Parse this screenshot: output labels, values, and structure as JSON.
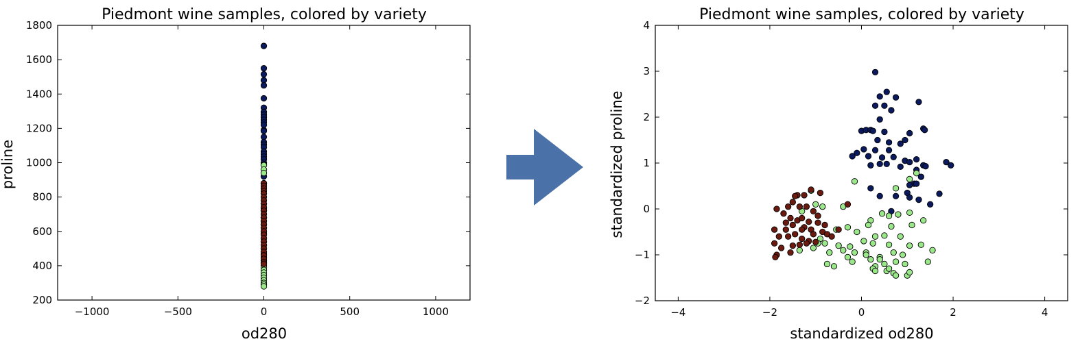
{
  "arrow_color": "#4a72a8",
  "colors": {
    "class_0": "#0a1a5c",
    "class_1": "#9be88a",
    "class_2": "#6b1a10",
    "edge": "#000000"
  },
  "chart_data": [
    {
      "type": "scatter",
      "title": "Piedmont wine samples, colored by variety",
      "xlabel": "od280",
      "ylabel": "proline",
      "xlim": [
        -1200,
        1200
      ],
      "ylim": [
        200,
        1800
      ],
      "xticks": [
        -1000,
        -500,
        0,
        500,
        1000
      ],
      "yticks": [
        200,
        400,
        600,
        800,
        1000,
        1200,
        1400,
        1600,
        1800
      ],
      "xtick_labels": [
        "−1000",
        "−500",
        "0",
        "500",
        "1000"
      ],
      "ytick_labels": [
        "200",
        "400",
        "600",
        "800",
        "1000",
        "1200",
        "1400",
        "1600",
        "1800"
      ],
      "grid": false,
      "series": [
        {
          "class": 0,
          "points": [
            [
              0,
              1680
            ],
            [
              0,
              1550
            ],
            [
              0,
              1515
            ],
            [
              0,
              1480
            ],
            [
              0,
              1450
            ],
            [
              0,
              1375
            ],
            [
              0,
              1320
            ],
            [
              0,
              1295
            ],
            [
              0,
              1280
            ],
            [
              0,
              1265
            ],
            [
              0,
              1250
            ],
            [
              0,
              1235
            ],
            [
              0,
              1220
            ],
            [
              0,
              1190
            ],
            [
              0,
              1185
            ],
            [
              0,
              1150
            ],
            [
              0,
              1120
            ],
            [
              0,
              1105
            ],
            [
              0,
              1090
            ],
            [
              0,
              1065
            ],
            [
              0,
              1050
            ],
            [
              0,
              1035
            ],
            [
              0,
              1020
            ],
            [
              0,
              1000
            ],
            [
              0,
              990
            ],
            [
              0,
              920
            ],
            [
              0,
              880
            ],
            [
              0,
              760
            ],
            [
              0,
              735
            ]
          ]
        },
        {
          "class": 1,
          "points": [
            [
              0,
              985
            ],
            [
              0,
              960
            ],
            [
              0,
              940
            ],
            [
              0,
              720
            ],
            [
              0,
              680
            ],
            [
              0,
              660
            ],
            [
              0,
              640
            ],
            [
              0,
              620
            ],
            [
              0,
              600
            ],
            [
              0,
              585
            ],
            [
              0,
              560
            ],
            [
              0,
              540
            ],
            [
              0,
              520
            ],
            [
              0,
              500
            ],
            [
              0,
              480
            ],
            [
              0,
              465
            ],
            [
              0,
              450
            ],
            [
              0,
              430
            ],
            [
              0,
              415
            ],
            [
              0,
              400
            ],
            [
              0,
              390
            ],
            [
              0,
              375
            ],
            [
              0,
              360
            ],
            [
              0,
              345
            ],
            [
              0,
              330
            ],
            [
              0,
              315
            ],
            [
              0,
              300
            ],
            [
              0,
              290
            ],
            [
              0,
              280
            ]
          ]
        },
        {
          "class": 2,
          "points": [
            [
              0,
              880
            ],
            [
              0,
              865
            ],
            [
              0,
              850
            ],
            [
              0,
              835
            ],
            [
              0,
              820
            ],
            [
              0,
              800
            ],
            [
              0,
              780
            ],
            [
              0,
              760
            ],
            [
              0,
              740
            ],
            [
              0,
              720
            ],
            [
              0,
              700
            ],
            [
              0,
              680
            ],
            [
              0,
              660
            ],
            [
              0,
              640
            ],
            [
              0,
              620
            ],
            [
              0,
              600
            ],
            [
              0,
              580
            ],
            [
              0,
              560
            ],
            [
              0,
              540
            ],
            [
              0,
              520
            ],
            [
              0,
              500
            ],
            [
              0,
              480
            ],
            [
              0,
              460
            ],
            [
              0,
              440
            ],
            [
              0,
              420
            ],
            [
              0,
              410
            ]
          ]
        }
      ]
    },
    {
      "type": "scatter",
      "title": "Piedmont wine samples, colored by variety",
      "xlabel": "standardized od280",
      "ylabel": "standardized proline",
      "xlim": [
        -4.5,
        4.5
      ],
      "ylim": [
        -2,
        4
      ],
      "xticks": [
        -4,
        -2,
        0,
        2,
        4
      ],
      "yticks": [
        -2,
        -1,
        0,
        1,
        2,
        3,
        4
      ],
      "xtick_labels": [
        "−4",
        "−2",
        "0",
        "2",
        "4"
      ],
      "ytick_labels": [
        "−2",
        "−1",
        "0",
        "1",
        "2",
        "3",
        "4"
      ],
      "grid": false,
      "series": [
        {
          "class": 0,
          "points": [
            [
              0.3,
              2.98
            ],
            [
              0.55,
              2.55
            ],
            [
              0.4,
              2.45
            ],
            [
              0.75,
              2.43
            ],
            [
              1.25,
              2.33
            ],
            [
              0.3,
              2.25
            ],
            [
              0.5,
              2.25
            ],
            [
              0.65,
              2.15
            ],
            [
              0.4,
              1.95
            ],
            [
              1.35,
              1.75
            ],
            [
              1.38,
              1.72
            ],
            [
              0.0,
              1.7
            ],
            [
              0.1,
              1.72
            ],
            [
              0.2,
              1.72
            ],
            [
              0.25,
              1.7
            ],
            [
              0.5,
              1.68
            ],
            [
              1.05,
              1.65
            ],
            [
              0.35,
              1.5
            ],
            [
              0.6,
              1.45
            ],
            [
              0.85,
              1.42
            ],
            [
              0.95,
              1.5
            ],
            [
              0.05,
              1.3
            ],
            [
              0.3,
              1.28
            ],
            [
              0.6,
              1.28
            ],
            [
              0.15,
              1.15
            ],
            [
              -0.2,
              1.15
            ],
            [
              -0.1,
              1.22
            ],
            [
              0.45,
              1.12
            ],
            [
              0.7,
              1.13
            ],
            [
              0.95,
              1.05
            ],
            [
              1.05,
              1.02
            ],
            [
              1.2,
              1.08
            ],
            [
              1.35,
              0.95
            ],
            [
              1.4,
              0.93
            ],
            [
              0.2,
              0.95
            ],
            [
              0.4,
              0.98
            ],
            [
              0.55,
              0.98
            ],
            [
              0.85,
              0.92
            ],
            [
              1.2,
              0.85
            ],
            [
              1.3,
              0.7
            ],
            [
              1.15,
              0.55
            ],
            [
              1.2,
              0.55
            ],
            [
              1.05,
              0.52
            ],
            [
              1.0,
              0.35
            ],
            [
              1.05,
              0.25
            ],
            [
              1.25,
              0.2
            ],
            [
              1.7,
              0.33
            ],
            [
              1.85,
              1.02
            ],
            [
              1.95,
              0.95
            ],
            [
              1.5,
              0.1
            ],
            [
              0.2,
              0.45
            ],
            [
              0.4,
              0.28
            ],
            [
              0.75,
              0.28
            ],
            [
              0.65,
              -0.05
            ]
          ]
        },
        {
          "class": 1,
          "points": [
            [
              -1.1,
              0.4
            ],
            [
              -1.3,
              -0.05
            ],
            [
              -0.85,
              0.05
            ],
            [
              -0.4,
              0.05
            ],
            [
              -0.15,
              0.6
            ],
            [
              0.75,
              0.45
            ],
            [
              1.2,
              0.78
            ],
            [
              1.05,
              0.65
            ],
            [
              0.6,
              -0.15
            ],
            [
              0.8,
              -0.12
            ],
            [
              0.45,
              -0.1
            ],
            [
              0.2,
              -0.25
            ],
            [
              1.05,
              -0.08
            ],
            [
              1.35,
              -0.25
            ],
            [
              0.15,
              -0.35
            ],
            [
              -0.3,
              -0.4
            ],
            [
              0.65,
              -0.38
            ],
            [
              1.1,
              -0.35
            ],
            [
              -0.55,
              -0.45
            ],
            [
              -0.1,
              -0.5
            ],
            [
              0.3,
              -0.6
            ],
            [
              0.5,
              -0.58
            ],
            [
              0.85,
              -0.6
            ],
            [
              -0.8,
              -0.75
            ],
            [
              -0.5,
              -0.8
            ],
            [
              -0.25,
              -0.82
            ],
            [
              0.05,
              -0.7
            ],
            [
              0.25,
              -0.75
            ],
            [
              0.6,
              -0.78
            ],
            [
              1.05,
              -0.8
            ],
            [
              1.3,
              -0.78
            ],
            [
              -0.7,
              -0.95
            ],
            [
              -0.4,
              -0.9
            ],
            [
              -0.15,
              -0.95
            ],
            [
              0.1,
              -0.95
            ],
            [
              0.4,
              -1.05
            ],
            [
              0.7,
              -0.95
            ],
            [
              0.9,
              -1.0
            ],
            [
              1.55,
              -0.9
            ],
            [
              -0.75,
              -1.2
            ],
            [
              -0.6,
              -1.25
            ],
            [
              -0.2,
              -1.15
            ],
            [
              0.2,
              -1.1
            ],
            [
              0.4,
              -1.1
            ],
            [
              0.5,
              -1.2
            ],
            [
              0.75,
              -1.15
            ],
            [
              0.95,
              -1.2
            ],
            [
              1.45,
              -1.15
            ],
            [
              -1.35,
              -0.9
            ],
            [
              -0.9,
              -0.65
            ],
            [
              0.3,
              -1.25
            ],
            [
              0.25,
              -1.3
            ],
            [
              0.55,
              -1.35
            ],
            [
              0.7,
              -1.4
            ],
            [
              0.75,
              -1.45
            ],
            [
              1.0,
              -1.45
            ],
            [
              1.05,
              -1.38
            ],
            [
              -1.0,
              0.1
            ],
            [
              -1.05,
              -0.85
            ],
            [
              -0.95,
              -0.75
            ],
            [
              -0.3,
              -1.05
            ],
            [
              0.1,
              -1.0
            ],
            [
              0.3,
              -1.35
            ],
            [
              0.6,
              -1.3
            ]
          ]
        },
        {
          "class": 2,
          "points": [
            [
              -1.85,
              0.0
            ],
            [
              -1.6,
              0.05
            ],
            [
              -1.4,
              0.3
            ],
            [
              -1.25,
              0.3
            ],
            [
              -1.1,
              0.42
            ],
            [
              -0.9,
              0.35
            ],
            [
              -1.5,
              0.15
            ],
            [
              -1.35,
              0.05
            ],
            [
              -1.2,
              0.05
            ],
            [
              -1.05,
              -0.05
            ],
            [
              -0.95,
              -0.15
            ],
            [
              -1.7,
              -0.1
            ],
            [
              -1.55,
              -0.2
            ],
            [
              -1.4,
              -0.25
            ],
            [
              -1.3,
              -0.2
            ],
            [
              -1.15,
              -0.28
            ],
            [
              -0.95,
              -0.3
            ],
            [
              -0.8,
              -0.35
            ],
            [
              -1.65,
              -0.3
            ],
            [
              -1.5,
              -0.35
            ],
            [
              -1.25,
              -0.4
            ],
            [
              -1.1,
              -0.45
            ],
            [
              -0.85,
              -0.5
            ],
            [
              -0.75,
              -0.55
            ],
            [
              -1.9,
              -0.45
            ],
            [
              -1.8,
              -0.6
            ],
            [
              -1.6,
              -0.6
            ],
            [
              -1.45,
              -0.55
            ],
            [
              -1.3,
              -0.65
            ],
            [
              -1.15,
              -0.7
            ],
            [
              -1.0,
              -0.72
            ],
            [
              -1.9,
              -0.75
            ],
            [
              -1.75,
              -0.85
            ],
            [
              -1.5,
              -0.8
            ],
            [
              -1.35,
              -0.78
            ],
            [
              -1.2,
              -0.75
            ],
            [
              -0.5,
              -0.45
            ],
            [
              -0.3,
              0.1
            ],
            [
              -1.85,
              -1.0
            ],
            [
              -1.88,
              -1.05
            ],
            [
              -1.55,
              -0.95
            ],
            [
              -1.65,
              -0.45
            ],
            [
              -1.3,
              -0.45
            ],
            [
              -1.05,
              -0.55
            ],
            [
              -0.65,
              -0.6
            ],
            [
              -1.45,
              0.28
            ]
          ]
        }
      ]
    }
  ]
}
